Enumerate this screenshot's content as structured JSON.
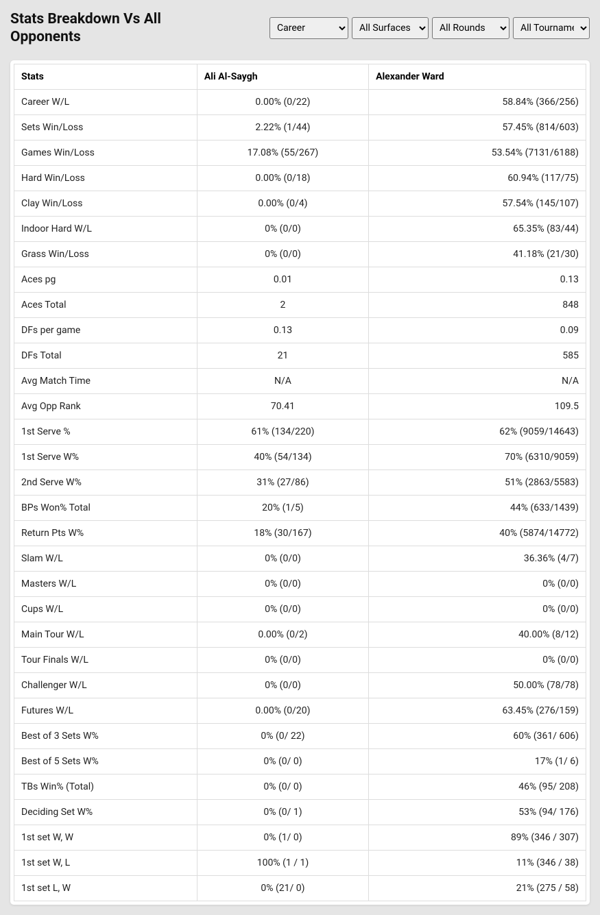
{
  "title": "Stats Breakdown Vs All Opponents",
  "filters": {
    "career": {
      "selected": "Career",
      "options": [
        "Career"
      ]
    },
    "surface": {
      "selected": "All Surfaces",
      "options": [
        "All Surfaces"
      ]
    },
    "rounds": {
      "selected": "All Rounds",
      "options": [
        "All Rounds"
      ]
    },
    "tournament": {
      "selected": "All Tournaments",
      "options": [
        "All Tournaments"
      ]
    }
  },
  "table": {
    "columns": [
      "Stats",
      "Ali Al-Saygh",
      "Alexander Ward"
    ],
    "rows": [
      [
        "Career W/L",
        "0.00% (0/22)",
        "58.84% (366/256)"
      ],
      [
        "Sets Win/Loss",
        "2.22% (1/44)",
        "57.45% (814/603)"
      ],
      [
        "Games Win/Loss",
        "17.08% (55/267)",
        "53.54% (7131/6188)"
      ],
      [
        "Hard Win/Loss",
        "0.00% (0/18)",
        "60.94% (117/75)"
      ],
      [
        "Clay Win/Loss",
        "0.00% (0/4)",
        "57.54% (145/107)"
      ],
      [
        "Indoor Hard W/L",
        "0% (0/0)",
        "65.35% (83/44)"
      ],
      [
        "Grass Win/Loss",
        "0% (0/0)",
        "41.18% (21/30)"
      ],
      [
        "Aces pg",
        "0.01",
        "0.13"
      ],
      [
        "Aces Total",
        "2",
        "848"
      ],
      [
        "DFs per game",
        "0.13",
        "0.09"
      ],
      [
        "DFs Total",
        "21",
        "585"
      ],
      [
        "Avg Match Time",
        "N/A",
        "N/A"
      ],
      [
        "Avg Opp Rank",
        "70.41",
        "109.5"
      ],
      [
        "1st Serve %",
        "61% (134/220)",
        "62% (9059/14643)"
      ],
      [
        "1st Serve W%",
        "40% (54/134)",
        "70% (6310/9059)"
      ],
      [
        "2nd Serve W%",
        "31% (27/86)",
        "51% (2863/5583)"
      ],
      [
        "BPs Won% Total",
        "20% (1/5)",
        "44% (633/1439)"
      ],
      [
        "Return Pts W%",
        "18% (30/167)",
        "40% (5874/14772)"
      ],
      [
        "Slam W/L",
        "0% (0/0)",
        "36.36% (4/7)"
      ],
      [
        "Masters W/L",
        "0% (0/0)",
        "0% (0/0)"
      ],
      [
        "Cups W/L",
        "0% (0/0)",
        "0% (0/0)"
      ],
      [
        "Main Tour W/L",
        "0.00% (0/2)",
        "40.00% (8/12)"
      ],
      [
        "Tour Finals W/L",
        "0% (0/0)",
        "0% (0/0)"
      ],
      [
        "Challenger W/L",
        "0% (0/0)",
        "50.00% (78/78)"
      ],
      [
        "Futures W/L",
        "0.00% (0/20)",
        "63.45% (276/159)"
      ],
      [
        "Best of 3 Sets W%",
        "0% (0/ 22)",
        "60% (361/ 606)"
      ],
      [
        "Best of 5 Sets W%",
        "0% (0/ 0)",
        "17% (1/ 6)"
      ],
      [
        "TBs Win% (Total)",
        "0% (0/ 0)",
        "46% (95/ 208)"
      ],
      [
        "Deciding Set W%",
        "0% (0/ 1)",
        "53% (94/ 176)"
      ],
      [
        "1st set W, W",
        "0% (1/ 0)",
        "89% (346 / 307)"
      ],
      [
        "1st set W, L",
        "100% (1 / 1)",
        "11% (346 / 38)"
      ],
      [
        "1st set L, W",
        "0% (21/ 0)",
        "21% (275 / 58)"
      ]
    ]
  }
}
